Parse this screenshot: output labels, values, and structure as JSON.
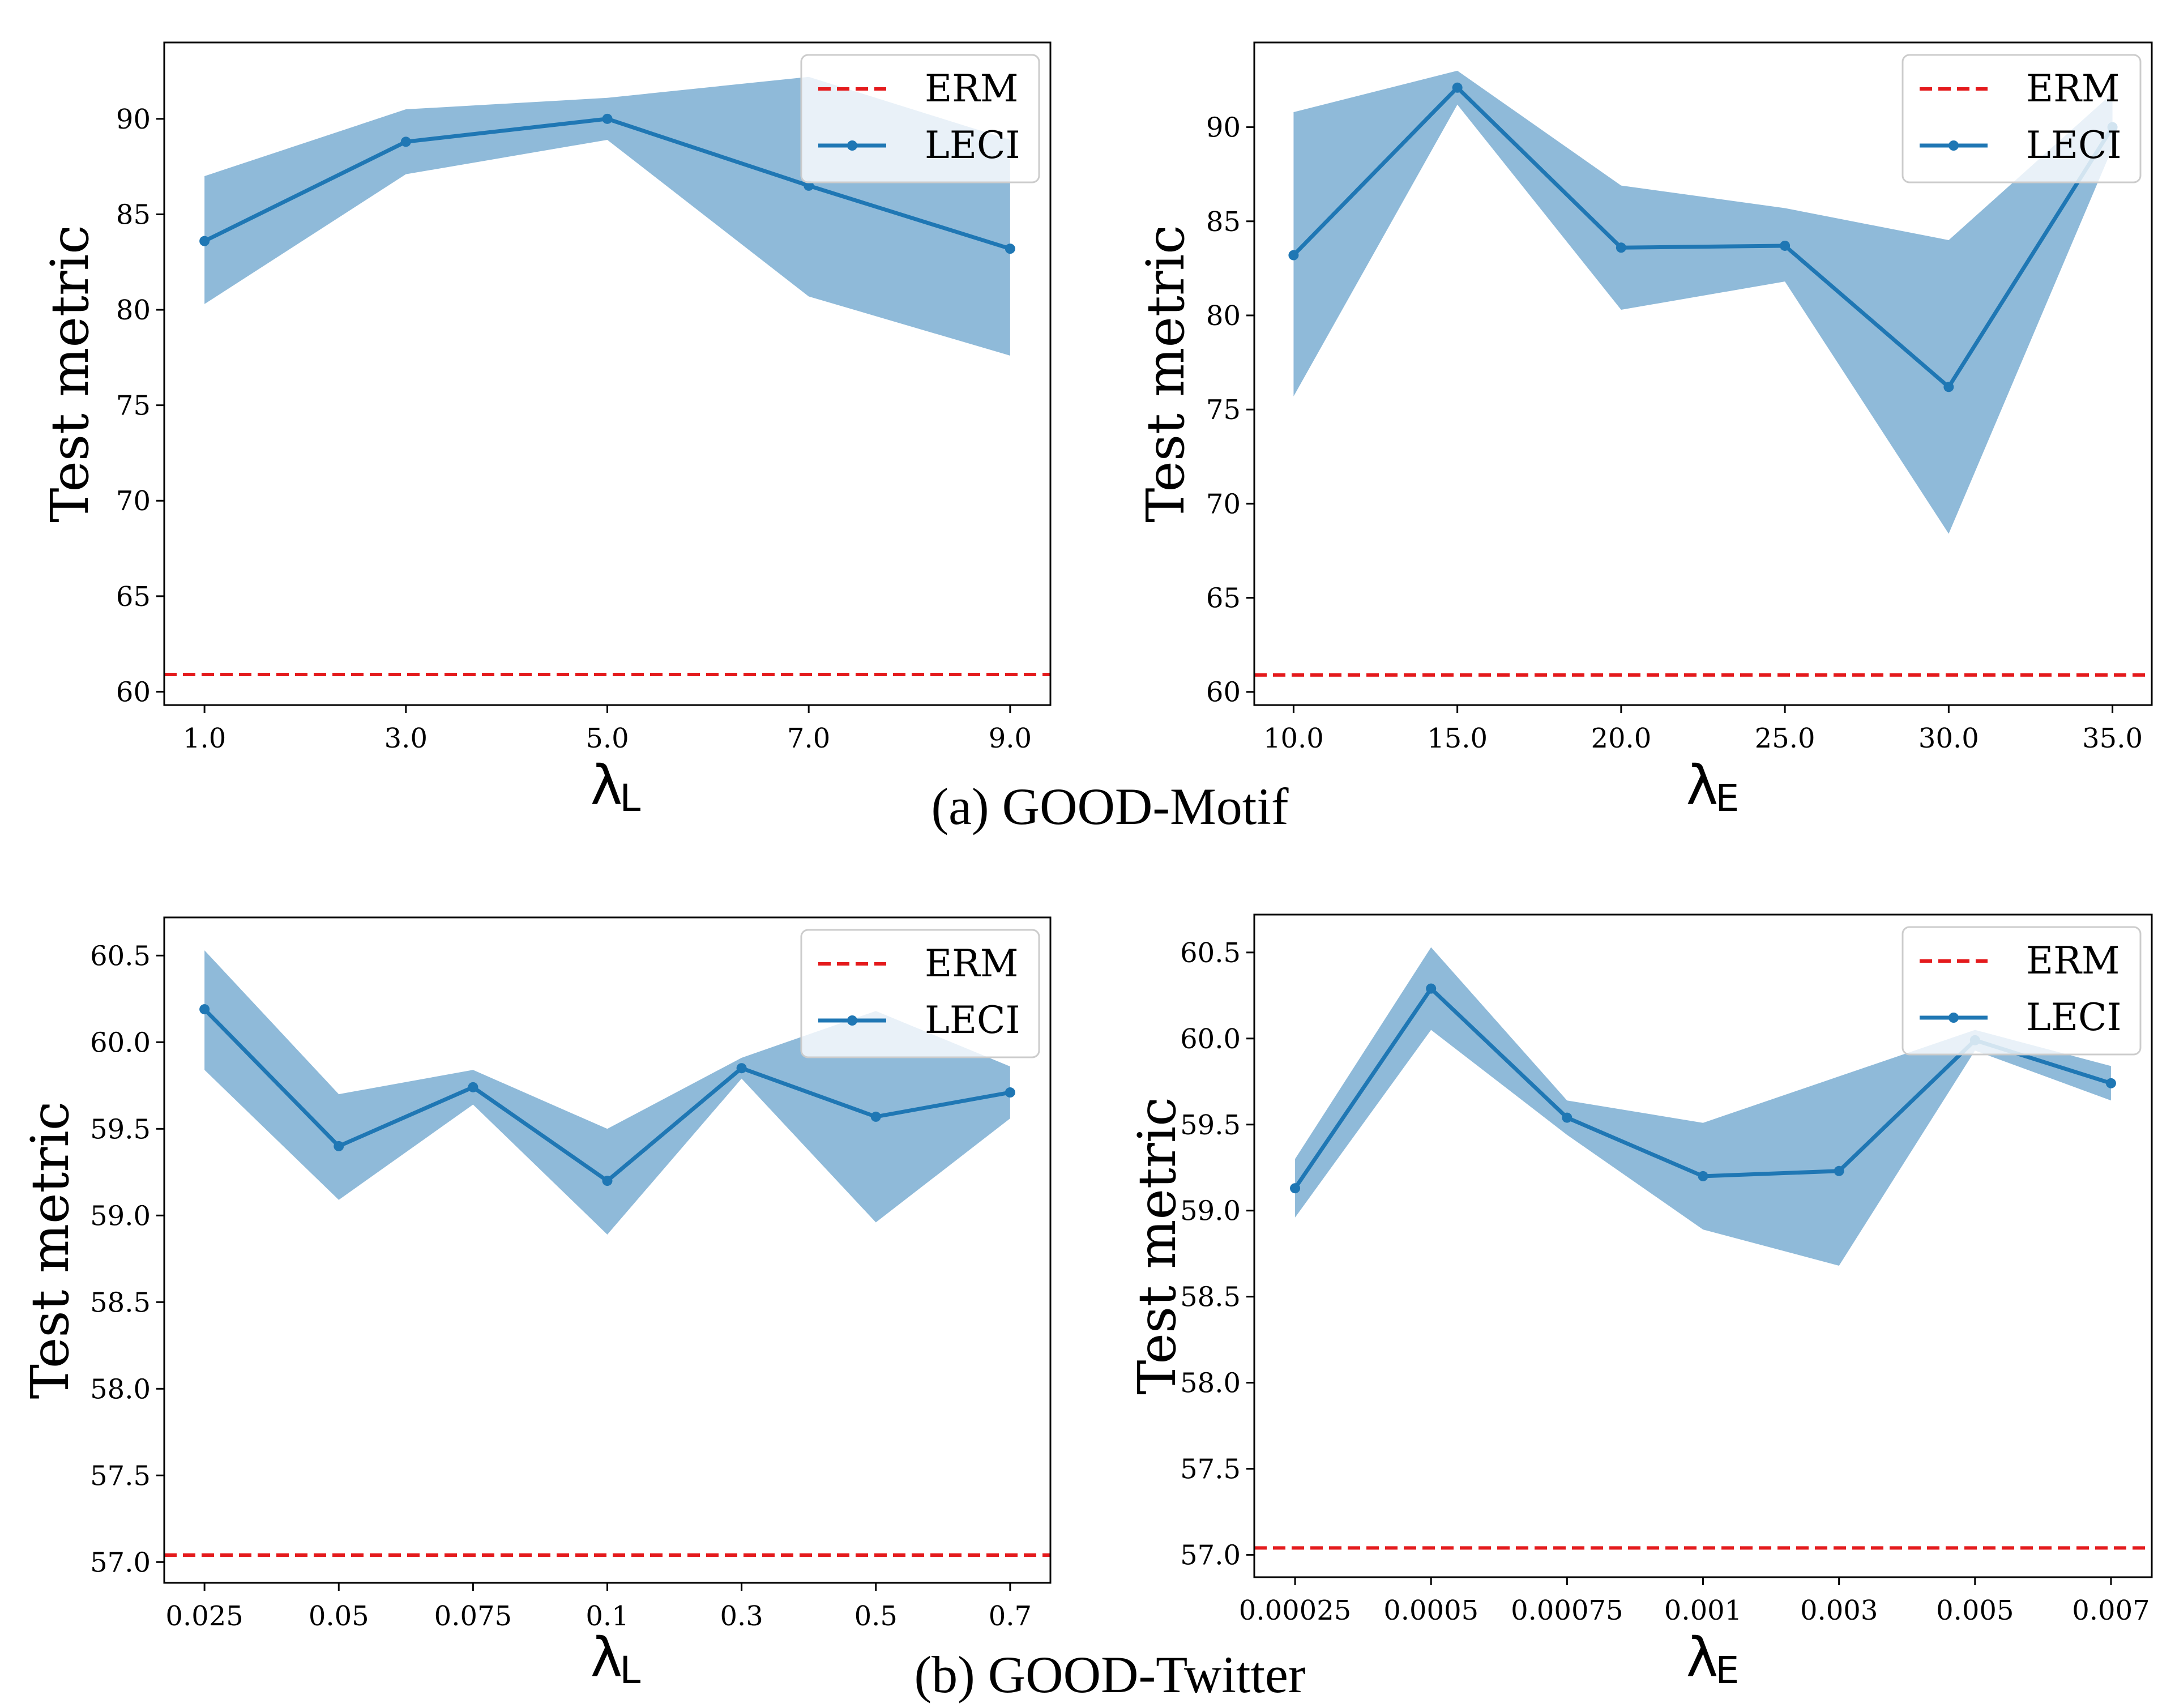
{
  "captions": {
    "a": "(a) GOOD-Motif",
    "b": "(b) GOOD-Twitter"
  },
  "colors": {
    "leci_line": "#1f77b4",
    "leci_band": "#8fbad9",
    "erm": "#e41a1c"
  },
  "chart_data": [
    {
      "id": "motif-lambda-l",
      "type": "line",
      "title": "",
      "xlabel": "λ",
      "xlabel_sub": "L",
      "ylabel": "Test metric",
      "categories": [
        "1.0",
        "3.0",
        "5.0",
        "7.0",
        "9.0"
      ],
      "x_mode": "numeric",
      "x_values": [
        1,
        3,
        5,
        7,
        9
      ],
      "xlim": [
        0.6,
        9.4
      ],
      "ylim": [
        59.3,
        94.0
      ],
      "yticks": [
        60,
        65,
        70,
        75,
        80,
        85,
        90
      ],
      "ytick_labels": [
        "60",
        "65",
        "70",
        "75",
        "80",
        "85",
        "90"
      ],
      "series": [
        {
          "name": "LECI",
          "values": [
            83.6,
            88.8,
            90.0,
            86.5,
            83.2
          ],
          "lower": [
            80.3,
            87.1,
            88.9,
            80.7,
            77.6
          ],
          "upper": [
            87.0,
            90.5,
            91.1,
            92.2,
            88.9
          ]
        }
      ],
      "reference": {
        "name": "ERM",
        "value": 60.9
      },
      "legend": {
        "position": "top-right",
        "entries": [
          "ERM",
          "LECI"
        ]
      }
    },
    {
      "id": "motif-lambda-e",
      "type": "line",
      "title": "",
      "xlabel": "λ",
      "xlabel_sub": "E",
      "ylabel": "Test metric",
      "categories": [
        "10.0",
        "15.0",
        "20.0",
        "25.0",
        "30.0",
        "35.0"
      ],
      "x_mode": "numeric",
      "x_values": [
        10,
        15,
        20,
        25,
        30,
        35
      ],
      "xlim": [
        8.8,
        36.2
      ],
      "ylim": [
        59.3,
        94.5
      ],
      "yticks": [
        60,
        65,
        70,
        75,
        80,
        85,
        90
      ],
      "ytick_labels": [
        "60",
        "65",
        "70",
        "75",
        "80",
        "85",
        "90"
      ],
      "series": [
        {
          "name": "LECI",
          "values": [
            83.2,
            92.1,
            83.6,
            83.7,
            76.2,
            90.0
          ],
          "lower": [
            75.7,
            91.2,
            80.3,
            81.8,
            68.4,
            88.9
          ],
          "upper": [
            90.8,
            93.0,
            86.9,
            85.7,
            84.0,
            91.8
          ]
        }
      ],
      "reference": {
        "name": "ERM",
        "value": 60.9
      },
      "legend": {
        "position": "top-right",
        "entries": [
          "ERM",
          "LECI"
        ]
      }
    },
    {
      "id": "twitter-lambda-l",
      "type": "line",
      "title": "",
      "xlabel": "λ",
      "xlabel_sub": "L",
      "ylabel": "Test metric",
      "categories": [
        "0.025",
        "0.05",
        "0.075",
        "0.1",
        "0.3",
        "0.5",
        "0.7"
      ],
      "x_mode": "categorical",
      "x_values": [
        0,
        1,
        2,
        3,
        4,
        5,
        6
      ],
      "xlim": [
        -0.3,
        6.3
      ],
      "ylim": [
        56.88,
        60.72
      ],
      "yticks": [
        57.0,
        57.5,
        58.0,
        58.5,
        59.0,
        59.5,
        60.0,
        60.5
      ],
      "ytick_labels": [
        "57.0",
        "57.5",
        "58.0",
        "58.5",
        "59.0",
        "59.5",
        "60.0",
        "60.5"
      ],
      "series": [
        {
          "name": "LECI",
          "values": [
            60.19,
            59.4,
            59.74,
            59.2,
            59.85,
            59.57,
            59.71
          ],
          "lower": [
            59.84,
            59.09,
            59.64,
            58.89,
            59.79,
            58.96,
            59.56
          ],
          "upper": [
            60.53,
            59.7,
            59.84,
            59.5,
            59.91,
            60.18,
            59.86
          ]
        }
      ],
      "reference": {
        "name": "ERM",
        "value": 57.04
      },
      "legend": {
        "position": "top-right",
        "entries": [
          "ERM",
          "LECI"
        ]
      }
    },
    {
      "id": "twitter-lambda-e",
      "type": "line",
      "title": "",
      "xlabel": "λ",
      "xlabel_sub": "E",
      "ylabel": "Test metric",
      "categories": [
        "0.00025",
        "0.0005",
        "0.00075",
        "0.001",
        "0.003",
        "0.005",
        "0.007"
      ],
      "x_mode": "categorical",
      "x_values": [
        0,
        1,
        2,
        3,
        4,
        5,
        6
      ],
      "xlim": [
        -0.3,
        6.3
      ],
      "ylim": [
        56.87,
        60.72
      ],
      "yticks": [
        57.0,
        57.5,
        58.0,
        58.5,
        59.0,
        59.5,
        60.0,
        60.5
      ],
      "ytick_labels": [
        "57.0",
        "57.5",
        "58.0",
        "58.5",
        "59.0",
        "59.5",
        "60.0",
        "60.5"
      ],
      "series": [
        {
          "name": "LECI",
          "values": [
            59.13,
            60.29,
            59.54,
            59.2,
            59.23,
            59.99,
            59.74
          ],
          "lower": [
            58.96,
            60.05,
            59.44,
            58.89,
            58.68,
            59.93,
            59.64
          ],
          "upper": [
            59.3,
            60.53,
            59.64,
            59.51,
            59.78,
            60.05,
            59.84
          ]
        }
      ],
      "reference": {
        "name": "ERM",
        "value": 57.04
      },
      "legend": {
        "position": "top-right",
        "entries": [
          "ERM",
          "LECI"
        ]
      }
    }
  ]
}
